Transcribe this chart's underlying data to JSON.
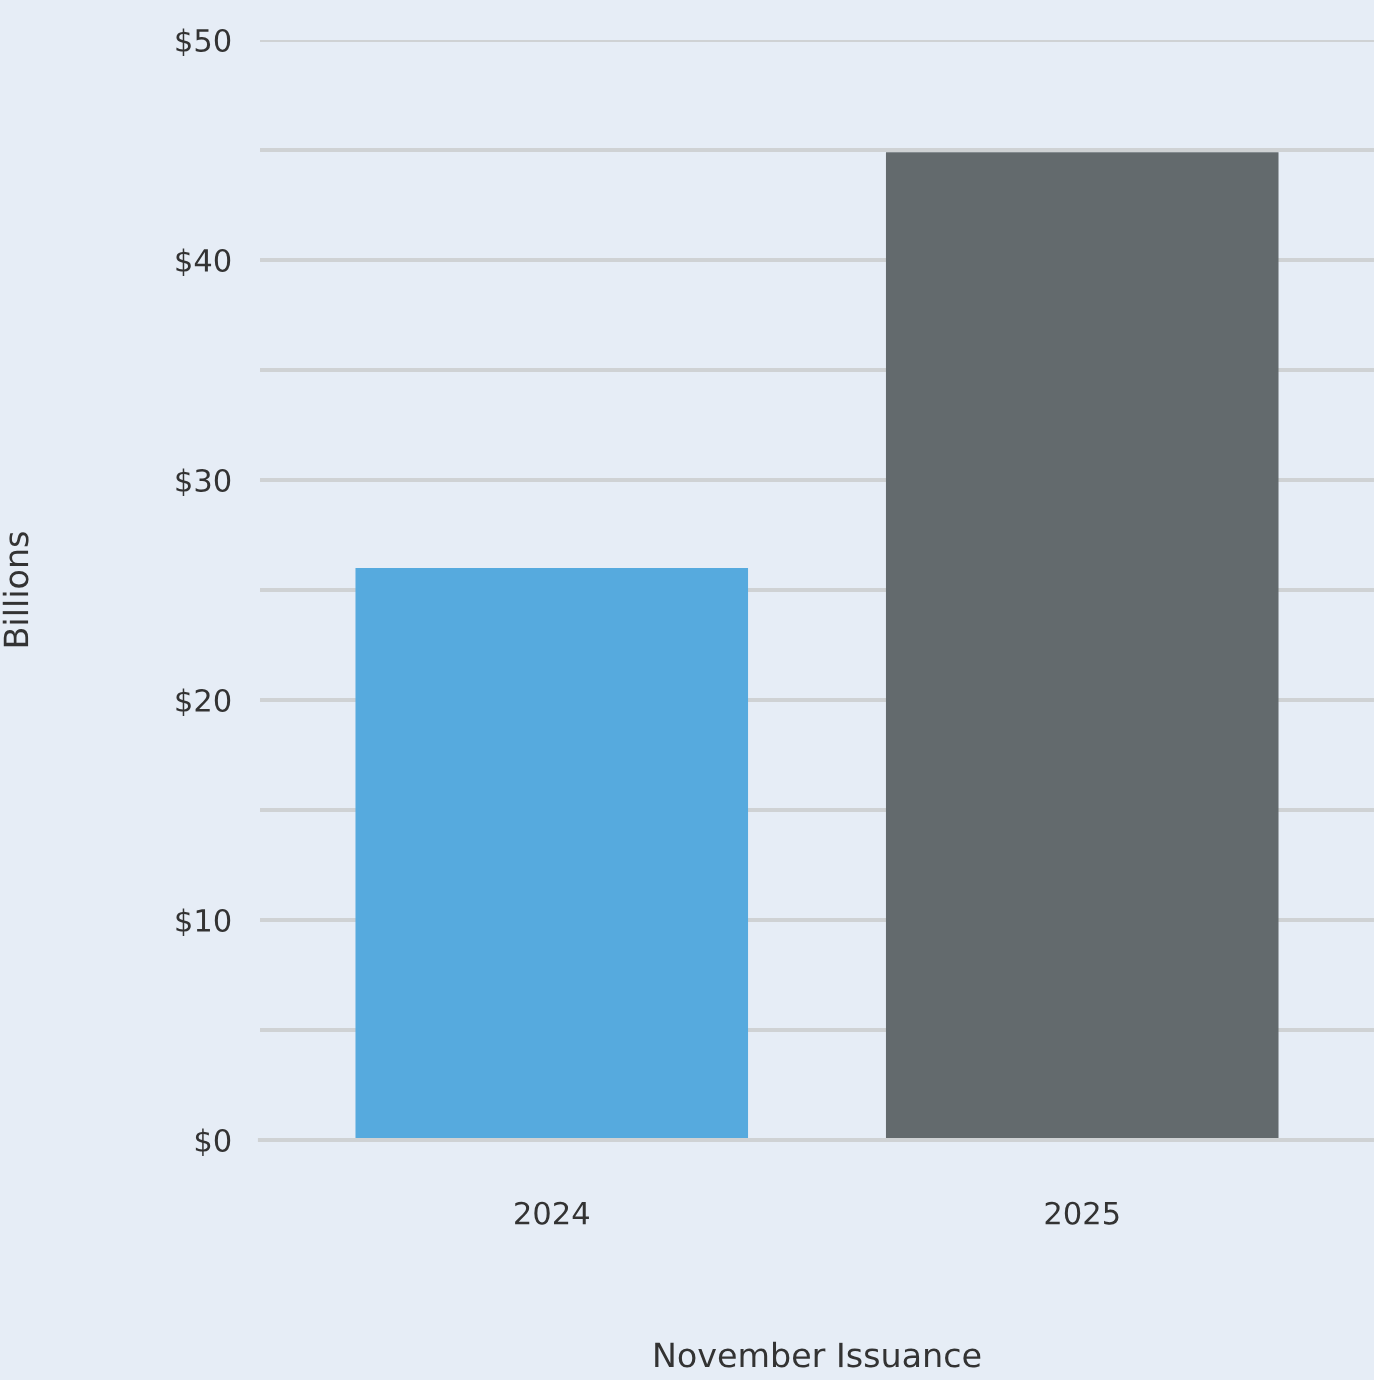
{
  "chart_data": {
    "type": "bar",
    "categories": [
      "2024",
      "2025"
    ],
    "colors": [
      "#56aade",
      "#636a6d"
    ],
    "values": [
      26,
      44.9
    ],
    "xlabel": "November Issuance",
    "ylabel": "Billions",
    "ylim": [
      0,
      50
    ],
    "yticks": [
      {
        "value": 0,
        "label": "$0"
      },
      {
        "value": 5,
        "label": null
      },
      {
        "value": 10,
        "label": "$10"
      },
      {
        "value": 15,
        "label": null
      },
      {
        "value": 20,
        "label": "$20"
      },
      {
        "value": 25,
        "label": null
      },
      {
        "value": 30,
        "label": "$30"
      },
      {
        "value": 35,
        "label": null
      },
      {
        "value": 40,
        "label": "$40"
      },
      {
        "value": 45,
        "label": null
      },
      {
        "value": 50,
        "label": "$50"
      }
    ],
    "grid": "y"
  }
}
